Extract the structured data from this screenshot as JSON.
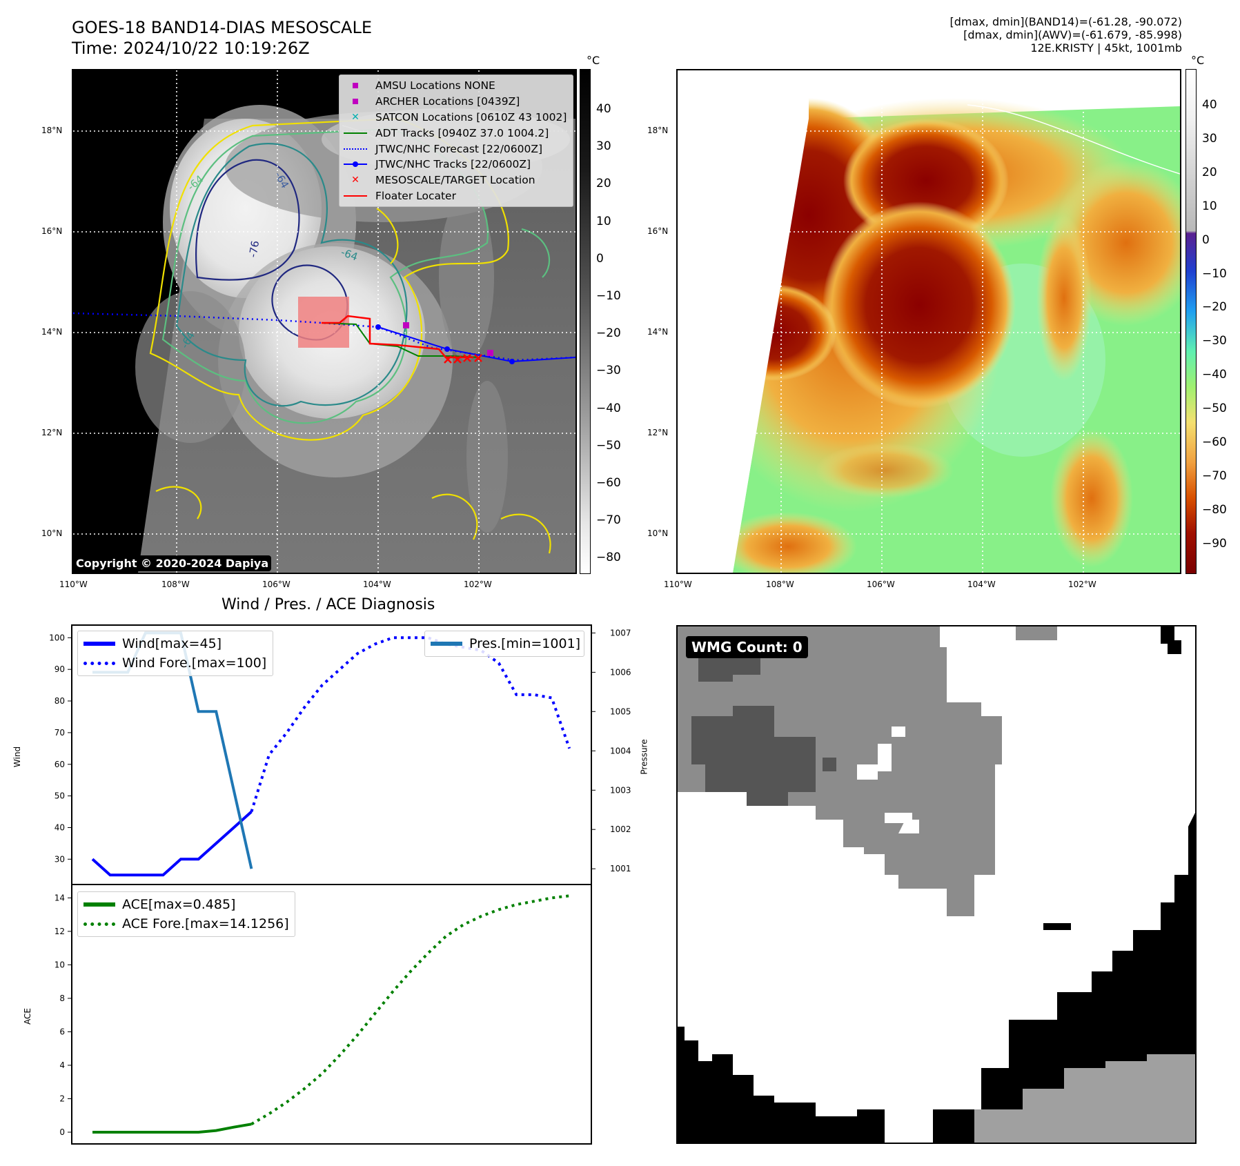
{
  "header": {
    "title_line1": "GOES-18 BAND14-DIAS MESOSCALE",
    "title_line2": "Time: 2024/10/22 10:19:26Z",
    "info_line1": "[dmax, dmin](BAND14)=(-61.28, -90.072)",
    "info_line2": "[dmax, dmin](AWV)=(-61.679, -85.998)",
    "info_line3": "12E.KRISTY | 45kt, 1001mb"
  },
  "map": {
    "lat_labels": [
      "18°N",
      "16°N",
      "14°N",
      "12°N",
      "10°N"
    ],
    "lon_labels": [
      "110°W",
      "108°W",
      "106°W",
      "104°W",
      "102°W"
    ],
    "copyright": "Copyright © 2020-2024 Dapiya",
    "contour_labels": [
      "-64",
      "-76",
      "-64",
      "-64",
      "-64"
    ],
    "legend": [
      {
        "label": "AMSU Locations NONE",
        "symbol": "square",
        "color": "#c000c0"
      },
      {
        "label": "ARCHER Locations [0439Z]",
        "symbol": "square",
        "color": "#c000c0"
      },
      {
        "label": "SATCON Locations [0610Z 43 1002]",
        "symbol": "x",
        "color": "#00b0b0"
      },
      {
        "label": "ADT Tracks [0940Z 37.0 1004.2]",
        "symbol": "line",
        "color": "#008000"
      },
      {
        "label": "JTWC/NHC Forecast [22/0600Z]",
        "symbol": "dotted",
        "color": "#0000ff"
      },
      {
        "label": "JTWC/NHC Tracks [22/0600Z]",
        "symbol": "line-dot",
        "color": "#0000ff"
      },
      {
        "label": "MESOSCALE/TARGET Location",
        "symbol": "x",
        "color": "#ff0000"
      },
      {
        "label": "Floater Locater",
        "symbol": "line",
        "color": "#ff0000"
      }
    ]
  },
  "colorbar_gray": {
    "unit": "°C",
    "ticks": [
      "40",
      "30",
      "20",
      "10",
      "0",
      "−10",
      "−20",
      "−30",
      "−40",
      "−50",
      "−60",
      "−70",
      "−80"
    ]
  },
  "colorbar_color": {
    "unit": "°C",
    "ticks": [
      "40",
      "30",
      "20",
      "10",
      "0",
      "−10",
      "−20",
      "−30",
      "−40",
      "−50",
      "−60",
      "−70",
      "−80",
      "−90"
    ]
  },
  "diagnosis": {
    "title": "Wind / Pres. / ACE Diagnosis",
    "wind_ylabel": "Wind",
    "pres_ylabel": "Pressure",
    "ace_ylabel": "ACE",
    "wind_ticks": [
      "100",
      "90",
      "80",
      "70",
      "60",
      "50",
      "40",
      "30"
    ],
    "pres_ticks": [
      "1007",
      "1006",
      "1005",
      "1004",
      "1003",
      "1002",
      "1001"
    ],
    "ace_ticks": [
      "14",
      "12",
      "10",
      "8",
      "6",
      "4",
      "2",
      "0"
    ],
    "legend_wind": "Wind[max=45]",
    "legend_wind_fore": "Wind Fore.[max=100]",
    "legend_pres": "Pres.[min=1001]",
    "legend_ace": "ACE[max=0.485]",
    "legend_ace_fore": "ACE Fore.[max=14.1256]"
  },
  "wmg": {
    "label": "WMG Count: 0"
  },
  "chart_data": [
    {
      "type": "line",
      "title": "Wind / Pres. / ACE Diagnosis",
      "ylabel": "Wind",
      "ylim": [
        22,
        104
      ],
      "series": [
        {
          "name": "Wind[max=45]",
          "color": "#0000ff",
          "style": "solid",
          "x": [
            0,
            1,
            2,
            3,
            4,
            5,
            6,
            7,
            8,
            9
          ],
          "values": [
            30,
            25,
            25,
            25,
            25,
            30,
            30,
            35,
            40,
            45
          ]
        },
        {
          "name": "Wind Fore.[max=100]",
          "color": "#0000ff",
          "style": "dotted",
          "x": [
            9,
            10,
            11,
            12,
            13,
            14,
            15,
            16,
            17,
            18,
            19,
            20,
            21,
            22,
            23,
            24,
            25,
            26,
            27
          ],
          "values": [
            45,
            63,
            70,
            78,
            85,
            90,
            95,
            98,
            100,
            100,
            100,
            98,
            97,
            96,
            92,
            82,
            82,
            81,
            65
          ]
        }
      ]
    },
    {
      "type": "line",
      "ylabel": "Pressure",
      "ylim": [
        1000.6,
        1007.2
      ],
      "series": [
        {
          "name": "Pres.[min=1001]",
          "color": "#1f77b4",
          "style": "solid",
          "x": [
            0,
            1,
            2,
            3,
            4,
            5,
            6,
            7,
            8,
            9
          ],
          "values": [
            1006,
            1006,
            1006,
            1007,
            1007,
            1007,
            1005,
            1005,
            1003,
            1001
          ]
        }
      ]
    },
    {
      "type": "line",
      "ylabel": "ACE",
      "ylim": [
        -0.7,
        14.8
      ],
      "series": [
        {
          "name": "ACE[max=0.485]",
          "color": "#008000",
          "style": "solid",
          "x": [
            0,
            1,
            2,
            3,
            4,
            5,
            6,
            7,
            8,
            9
          ],
          "values": [
            0,
            0,
            0,
            0,
            0,
            0,
            0,
            0.1,
            0.3,
            0.485
          ]
        },
        {
          "name": "ACE Fore.[max=14.1256]",
          "color": "#008000",
          "style": "dotted",
          "x": [
            9,
            10,
            11,
            12,
            13,
            14,
            15,
            16,
            17,
            18,
            19,
            20,
            21,
            22,
            23,
            24,
            25,
            26,
            27
          ],
          "values": [
            0.485,
            1.1,
            1.8,
            2.6,
            3.5,
            4.6,
            5.8,
            7.1,
            8.4,
            9.6,
            10.7,
            11.7,
            12.4,
            12.9,
            13.3,
            13.6,
            13.8,
            14.0,
            14.1256
          ]
        }
      ]
    }
  ]
}
